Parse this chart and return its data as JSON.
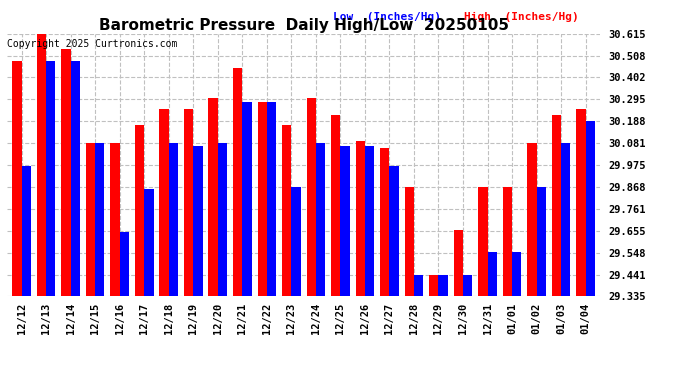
{
  "title": "Barometric Pressure  Daily High/Low  20250105",
  "copyright": "Copyright 2025 Curtronics.com",
  "legend_low": "Low  (Inches/Hg)",
  "legend_high": "High  (Inches/Hg)",
  "dates": [
    "12/12",
    "12/13",
    "12/14",
    "12/15",
    "12/16",
    "12/17",
    "12/18",
    "12/19",
    "12/20",
    "12/21",
    "12/22",
    "12/23",
    "12/24",
    "12/25",
    "12/26",
    "12/27",
    "12/28",
    "12/29",
    "12/30",
    "12/31",
    "01/01",
    "01/02",
    "01/03",
    "01/04"
  ],
  "highs": [
    30.48,
    30.62,
    30.54,
    30.08,
    30.08,
    30.17,
    30.25,
    30.25,
    30.3,
    30.45,
    30.28,
    30.17,
    30.3,
    30.22,
    30.09,
    30.06,
    29.87,
    29.44,
    29.66,
    29.87,
    29.87,
    30.08,
    30.22,
    30.25
  ],
  "lows": [
    29.97,
    30.48,
    30.48,
    30.08,
    29.65,
    29.86,
    30.08,
    30.07,
    30.08,
    30.28,
    30.28,
    29.87,
    30.08,
    30.07,
    30.07,
    29.97,
    29.44,
    29.44,
    29.44,
    29.55,
    29.55,
    29.87,
    30.08,
    30.19
  ],
  "ymin": 29.335,
  "ymax": 30.615,
  "yticks": [
    29.335,
    29.441,
    29.548,
    29.655,
    29.761,
    29.868,
    29.975,
    30.081,
    30.188,
    30.295,
    30.402,
    30.508,
    30.615
  ],
  "high_color": "#ff0000",
  "low_color": "#0000ff",
  "bg_color": "#ffffff",
  "grid_color": "#c0c0c0",
  "title_fontsize": 11,
  "tick_fontsize": 7.5,
  "copyright_fontsize": 7,
  "legend_fontsize": 8
}
